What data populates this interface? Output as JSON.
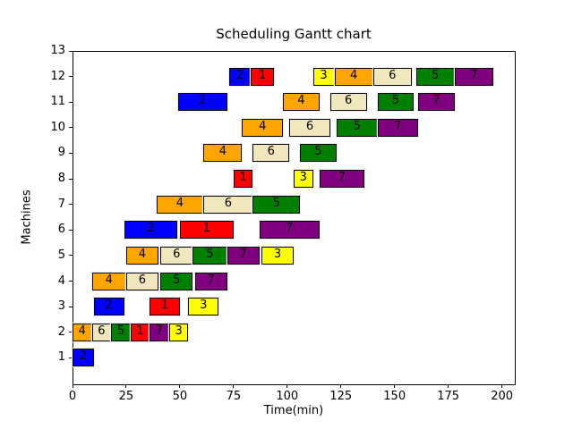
{
  "chart_data": {
    "type": "bar",
    "subtype": "gantt",
    "title": "Scheduling Gantt chart",
    "xlabel": "Time(min)",
    "ylabel": "Machines",
    "xlim": [
      0,
      206
    ],
    "ylim": [
      0,
      13
    ],
    "xticks": [
      0,
      25,
      50,
      75,
      100,
      125,
      150,
      175,
      200
    ],
    "yticks": [
      1,
      2,
      3,
      4,
      5,
      6,
      7,
      8,
      9,
      10,
      11,
      12,
      13
    ],
    "grid": false,
    "legend": "none",
    "bar_height": 0.7,
    "bar_edge_color": "#000000",
    "job_colors": {
      "1": "#ff0000",
      "2": "#0000ff",
      "3": "#ffff00",
      "4": "#ffa500",
      "5": "#008000",
      "6": "#f0e7bc",
      "7": "#800080"
    },
    "bars": [
      {
        "machine": 1,
        "job": 2,
        "start": 0,
        "end": 10
      },
      {
        "machine": 2,
        "job": 4,
        "start": 0,
        "end": 9
      },
      {
        "machine": 2,
        "job": 6,
        "start": 9,
        "end": 18
      },
      {
        "machine": 2,
        "job": 5,
        "start": 18,
        "end": 27
      },
      {
        "machine": 2,
        "job": 1,
        "start": 27,
        "end": 36
      },
      {
        "machine": 2,
        "job": 7,
        "start": 36,
        "end": 45
      },
      {
        "machine": 2,
        "job": 3,
        "start": 45,
        "end": 54
      },
      {
        "machine": 3,
        "job": 2,
        "start": 10,
        "end": 24
      },
      {
        "machine": 3,
        "job": 1,
        "start": 36,
        "end": 50
      },
      {
        "machine": 3,
        "job": 3,
        "start": 54,
        "end": 68
      },
      {
        "machine": 4,
        "job": 4,
        "start": 9,
        "end": 25
      },
      {
        "machine": 4,
        "job": 6,
        "start": 25,
        "end": 40
      },
      {
        "machine": 4,
        "job": 5,
        "start": 41,
        "end": 56
      },
      {
        "machine": 4,
        "job": 7,
        "start": 57,
        "end": 72
      },
      {
        "machine": 5,
        "job": 4,
        "start": 25,
        "end": 40
      },
      {
        "machine": 5,
        "job": 6,
        "start": 41,
        "end": 56
      },
      {
        "machine": 5,
        "job": 5,
        "start": 56,
        "end": 72
      },
      {
        "machine": 5,
        "job": 7,
        "start": 72,
        "end": 87
      },
      {
        "machine": 5,
        "job": 3,
        "start": 88,
        "end": 103
      },
      {
        "machine": 6,
        "job": 2,
        "start": 24,
        "end": 49
      },
      {
        "machine": 6,
        "job": 1,
        "start": 50,
        "end": 75
      },
      {
        "machine": 6,
        "job": 7,
        "start": 87,
        "end": 115
      },
      {
        "machine": 7,
        "job": 4,
        "start": 39,
        "end": 61
      },
      {
        "machine": 7,
        "job": 6,
        "start": 61,
        "end": 84
      },
      {
        "machine": 7,
        "job": 5,
        "start": 84,
        "end": 106
      },
      {
        "machine": 8,
        "job": 1,
        "start": 75,
        "end": 84
      },
      {
        "machine": 8,
        "job": 3,
        "start": 103,
        "end": 112
      },
      {
        "machine": 8,
        "job": 7,
        "start": 115,
        "end": 136
      },
      {
        "machine": 9,
        "job": 4,
        "start": 61,
        "end": 79
      },
      {
        "machine": 9,
        "job": 6,
        "start": 84,
        "end": 101
      },
      {
        "machine": 9,
        "job": 5,
        "start": 106,
        "end": 123
      },
      {
        "machine": 10,
        "job": 4,
        "start": 79,
        "end": 98
      },
      {
        "machine": 10,
        "job": 6,
        "start": 101,
        "end": 120
      },
      {
        "machine": 10,
        "job": 5,
        "start": 123,
        "end": 142
      },
      {
        "machine": 10,
        "job": 7,
        "start": 142,
        "end": 161
      },
      {
        "machine": 11,
        "job": 2,
        "start": 49,
        "end": 72
      },
      {
        "machine": 11,
        "job": 4,
        "start": 98,
        "end": 115
      },
      {
        "machine": 11,
        "job": 6,
        "start": 120,
        "end": 137
      },
      {
        "machine": 11,
        "job": 5,
        "start": 142,
        "end": 159
      },
      {
        "machine": 11,
        "job": 7,
        "start": 161,
        "end": 178
      },
      {
        "machine": 12,
        "job": 2,
        "start": 73,
        "end": 83
      },
      {
        "machine": 12,
        "job": 1,
        "start": 83,
        "end": 94
      },
      {
        "machine": 12,
        "job": 3,
        "start": 112,
        "end": 122
      },
      {
        "machine": 12,
        "job": 4,
        "start": 122,
        "end": 140
      },
      {
        "machine": 12,
        "job": 6,
        "start": 140,
        "end": 158
      },
      {
        "machine": 12,
        "job": 5,
        "start": 160,
        "end": 178
      },
      {
        "machine": 12,
        "job": 7,
        "start": 178,
        "end": 196
      }
    ]
  }
}
